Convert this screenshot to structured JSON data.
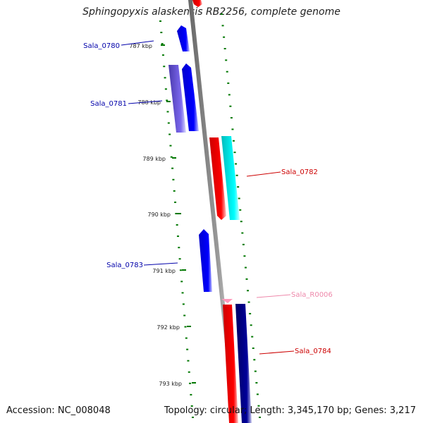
{
  "title": "Sphingopyxis alaskensis RB2256, complete genome",
  "footer": {
    "accession": "Accession: NC_008048",
    "summary": "Topology: circular; Length: 3,345,170 bp; Genes: 3,217"
  },
  "ticks": [
    "787 kbp",
    "788 kbp",
    "789 kbp",
    "790 kbp",
    "791 kbp",
    "792 kbp",
    "793 kbp"
  ],
  "genes": [
    {
      "id": "Sala_0780",
      "strand": "-",
      "color": "#0000ee"
    },
    {
      "id": "Sala_0781",
      "strand": "-",
      "color": "#0000ee"
    },
    {
      "id": "Sala_0782",
      "strand": "+",
      "color": "#ee0000"
    },
    {
      "id": "Sala_0783",
      "strand": "-",
      "color": "#0000ee"
    },
    {
      "id": "Sala_R0006",
      "strand": "+",
      "color": "#ff88bb"
    },
    {
      "id": "Sala_0784",
      "strand": "+",
      "color": "#ee0000"
    }
  ],
  "colors": {
    "backbone": "#888888",
    "tick": "#007700",
    "minus_label": "#0000aa",
    "plus_label": "#cc0000",
    "rna_label": "#ee88aa",
    "cyan_track": "#00e5e5",
    "purple_track": "#6a5acd",
    "navy_track": "#000080"
  }
}
